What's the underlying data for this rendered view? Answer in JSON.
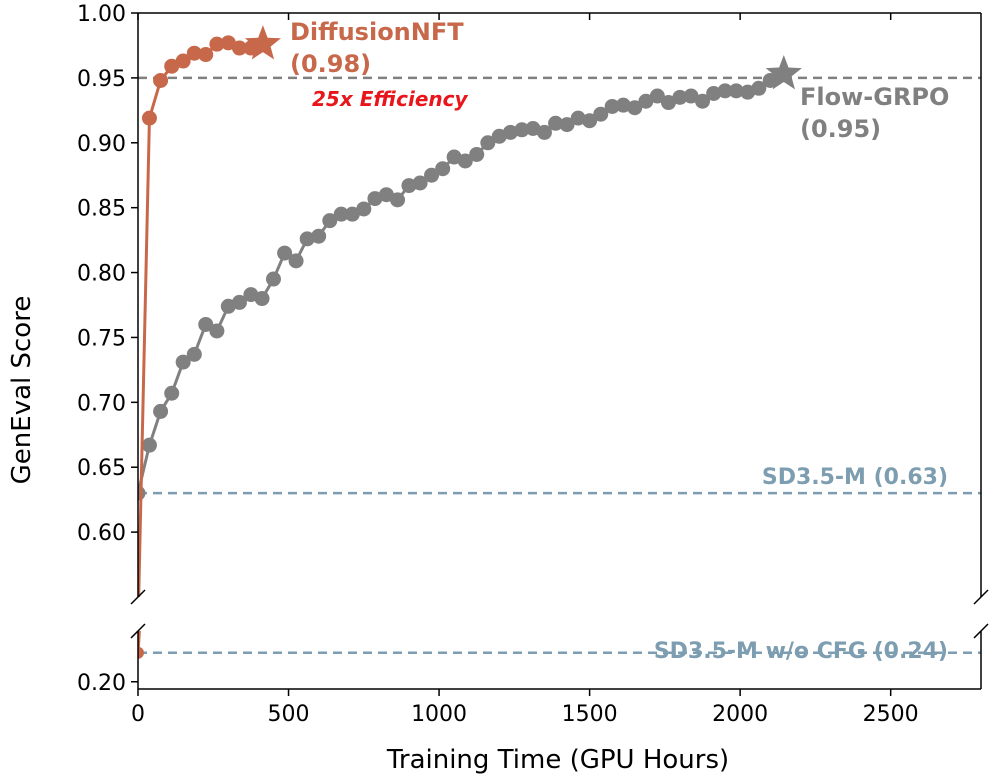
{
  "chart_data": {
    "type": "line",
    "xlabel": "Training Time (GPU Hours)",
    "ylabel": "GenEval Score",
    "xlim": [
      0,
      2800
    ],
    "ylim_upper": [
      0.55,
      1.0
    ],
    "ylim_lower": [
      0.19,
      0.27
    ],
    "xticks": [
      "0",
      "500",
      "1000",
      "1500",
      "2000",
      "2500"
    ],
    "yticks_upper": [
      "0.60",
      "0.65",
      "0.70",
      "0.75",
      "0.80",
      "0.85",
      "0.90",
      "0.95",
      "1.00"
    ],
    "yticks_lower": [
      "0.20"
    ],
    "broken_axis": true,
    "grid": false,
    "colors": {
      "diffusion": "#c8684a",
      "flow": "#808080",
      "baseline": "#7d9db0",
      "efficiency": "#e8161b"
    },
    "series": [
      {
        "name": "DiffusionNFT",
        "label": "DiffusionNFT",
        "final_label": "(0.98)",
        "start": {
          "x": 0,
          "y": 0.24
        },
        "x": [
          38,
          75,
          112,
          150,
          187,
          225,
          262,
          300,
          337,
          375
        ],
        "y": [
          0.919,
          0.948,
          0.959,
          0.963,
          0.969,
          0.968,
          0.976,
          0.977,
          0.973,
          0.973
        ],
        "final": {
          "x": 415,
          "y": 0.976
        }
      },
      {
        "name": "Flow-GRPO",
        "label": "Flow-GRPO",
        "final_label": "(0.95)",
        "x": [
          0,
          38,
          75,
          112,
          150,
          187,
          225,
          262,
          300,
          337,
          375,
          412,
          450,
          487,
          525,
          562,
          600,
          637,
          675,
          712,
          750,
          787,
          825,
          862,
          900,
          937,
          975,
          1012,
          1050,
          1087,
          1125,
          1162,
          1200,
          1237,
          1275,
          1312,
          1350,
          1387,
          1425,
          1462,
          1500,
          1537,
          1575,
          1612,
          1650,
          1687,
          1725,
          1762,
          1800,
          1837,
          1875,
          1912,
          1950,
          1987,
          2025,
          2062,
          2100
        ],
        "y": [
          0.63,
          0.667,
          0.693,
          0.707,
          0.731,
          0.737,
          0.76,
          0.755,
          0.774,
          0.777,
          0.783,
          0.78,
          0.795,
          0.815,
          0.809,
          0.826,
          0.828,
          0.84,
          0.845,
          0.845,
          0.849,
          0.857,
          0.86,
          0.856,
          0.867,
          0.869,
          0.875,
          0.88,
          0.889,
          0.886,
          0.891,
          0.9,
          0.905,
          0.908,
          0.91,
          0.911,
          0.908,
          0.915,
          0.914,
          0.919,
          0.917,
          0.922,
          0.928,
          0.929,
          0.927,
          0.932,
          0.936,
          0.931,
          0.935,
          0.936,
          0.932,
          0.938,
          0.94,
          0.94,
          0.939,
          0.942,
          0.948
        ],
        "final": {
          "x": 2145,
          "y": 0.953
        }
      }
    ],
    "reference_lines": [
      {
        "y": 0.95,
        "label": "",
        "style": "dashed",
        "color": "#808080",
        "x_from": 0,
        "x_to": 2800
      },
      {
        "y": 0.63,
        "label": "SD3.5-M (0.63)",
        "style": "dashed",
        "color": "#7d9db0",
        "x_from": 0,
        "x_to": 2800
      },
      {
        "y": 0.24,
        "label": "SD3.5-M w/o CFG (0.24)",
        "style": "dashed",
        "color": "#7d9db0",
        "x_from": 0,
        "x_to": 2800
      }
    ],
    "annotations": [
      {
        "text": "25x Efficiency",
        "x": 240,
        "y": 0.933
      }
    ]
  }
}
